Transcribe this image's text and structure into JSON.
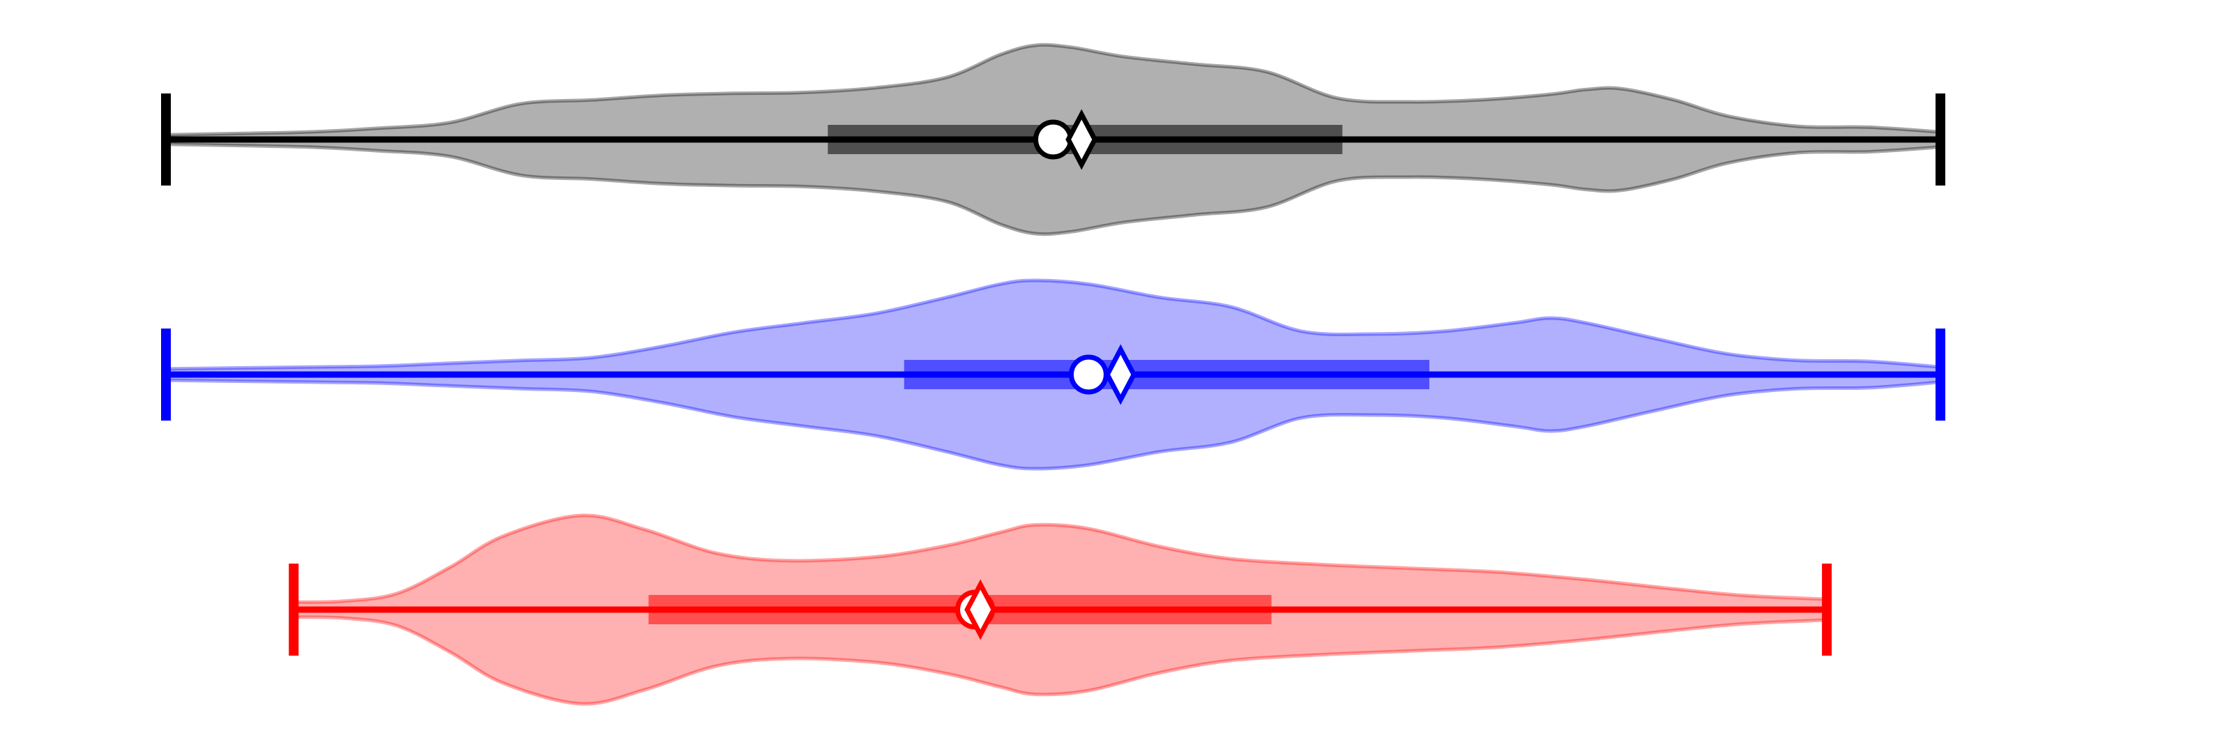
{
  "chart_data": {
    "type": "violin",
    "orientation": "horizontal",
    "title": "",
    "xlabel": "",
    "ylabel": "",
    "xlim": [
      0,
      100
    ],
    "axes_visible": false,
    "grid": false,
    "legend": "none",
    "series": [
      {
        "color": "#000000",
        "fill": "#b0b0b0",
        "min": 0,
        "q1": 37.3,
        "median": 50.0,
        "mean": 51.6,
        "q3": 66.3,
        "max": 100,
        "density": [
          [
            0,
            0.05
          ],
          [
            3,
            0.06
          ],
          [
            8,
            0.08
          ],
          [
            12,
            0.12
          ],
          [
            16,
            0.18
          ],
          [
            20,
            0.38
          ],
          [
            24,
            0.42
          ],
          [
            28,
            0.47
          ],
          [
            32,
            0.49
          ],
          [
            36,
            0.5
          ],
          [
            40,
            0.55
          ],
          [
            44,
            0.66
          ],
          [
            47,
            0.9
          ],
          [
            49,
            1.0
          ],
          [
            51,
            0.98
          ],
          [
            54,
            0.88
          ],
          [
            58,
            0.8
          ],
          [
            62,
            0.72
          ],
          [
            66,
            0.44
          ],
          [
            70,
            0.4
          ],
          [
            74,
            0.42
          ],
          [
            78,
            0.48
          ],
          [
            80,
            0.53
          ],
          [
            82,
            0.54
          ],
          [
            85,
            0.42
          ],
          [
            88,
            0.25
          ],
          [
            92,
            0.14
          ],
          [
            96,
            0.13
          ],
          [
            100,
            0.08
          ]
        ]
      },
      {
        "color": "#0000ff",
        "fill": "#b0b0ff",
        "min": 0,
        "q1": 41.6,
        "median": 52.0,
        "mean": 53.8,
        "q3": 71.2,
        "max": 100,
        "density": [
          [
            0,
            0.06
          ],
          [
            4,
            0.07
          ],
          [
            8,
            0.08
          ],
          [
            12,
            0.09
          ],
          [
            16,
            0.12
          ],
          [
            20,
            0.15
          ],
          [
            24,
            0.18
          ],
          [
            28,
            0.3
          ],
          [
            32,
            0.45
          ],
          [
            36,
            0.55
          ],
          [
            40,
            0.65
          ],
          [
            44,
            0.82
          ],
          [
            47,
            0.96
          ],
          [
            49,
            1.0
          ],
          [
            52,
            0.96
          ],
          [
            56,
            0.82
          ],
          [
            60,
            0.72
          ],
          [
            64,
            0.46
          ],
          [
            68,
            0.43
          ],
          [
            72,
            0.46
          ],
          [
            76,
            0.55
          ],
          [
            78,
            0.6
          ],
          [
            80,
            0.55
          ],
          [
            84,
            0.38
          ],
          [
            88,
            0.22
          ],
          [
            92,
            0.15
          ],
          [
            96,
            0.14
          ],
          [
            100,
            0.08
          ]
        ]
      },
      {
        "color": "#ff0000",
        "fill": "#ffb0b0",
        "min": 7.2,
        "q1": 27.2,
        "median": 45.6,
        "mean": 45.9,
        "q3": 62.3,
        "max": 93.6,
        "density": [
          [
            7.2,
            0.08
          ],
          [
            10,
            0.09
          ],
          [
            13,
            0.17
          ],
          [
            16,
            0.45
          ],
          [
            19,
            0.78
          ],
          [
            23.4,
            1.0
          ],
          [
            27,
            0.85
          ],
          [
            31,
            0.6
          ],
          [
            35,
            0.52
          ],
          [
            40,
            0.56
          ],
          [
            44,
            0.68
          ],
          [
            47,
            0.82
          ],
          [
            49,
            0.9
          ],
          [
            52,
            0.86
          ],
          [
            56,
            0.67
          ],
          [
            60,
            0.54
          ],
          [
            65,
            0.48
          ],
          [
            70,
            0.44
          ],
          [
            75,
            0.4
          ],
          [
            80,
            0.32
          ],
          [
            85,
            0.22
          ],
          [
            89,
            0.15
          ],
          [
            93.6,
            0.11
          ]
        ]
      }
    ]
  }
}
